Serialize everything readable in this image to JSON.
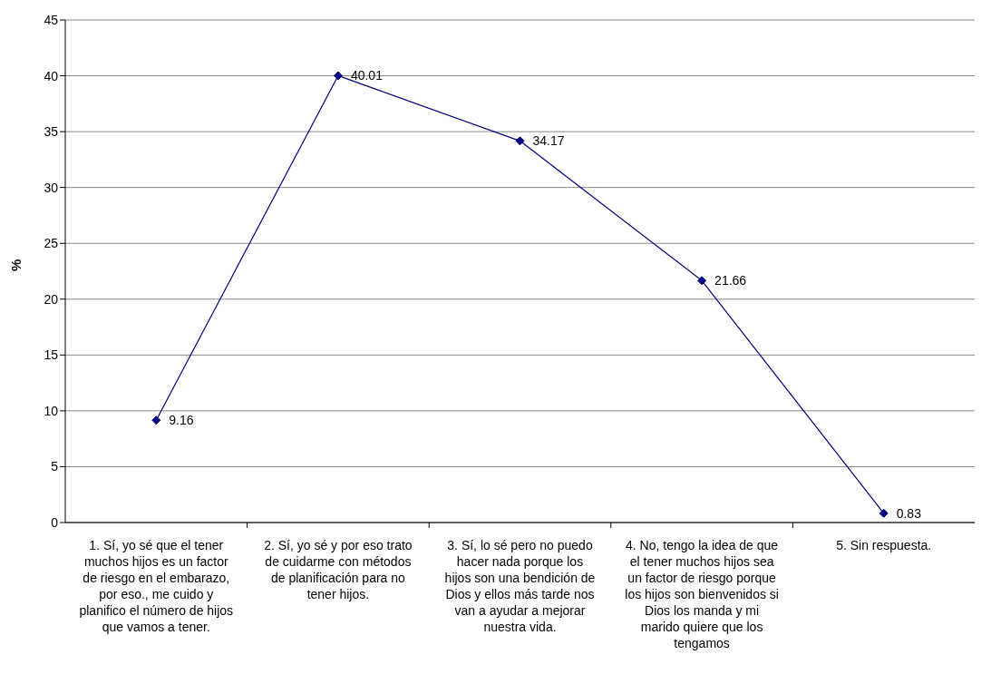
{
  "chart_data": {
    "type": "line",
    "ylabel": "%",
    "categories": [
      "1. Sí, yo sé que el tener muchos hijos es un factor de riesgo en el embarazo, por eso., me cuido y planifico el número de hijos que vamos a tener.",
      "2. Sí, yo sé y por eso trato de cuidarme con métodos de planificación para no tener hijos.",
      "3. Sí, lo sé pero no puedo hacer nada porque los hijos son una bendición de Dios y ellos más tarde nos van a ayudar a mejorar nuestra vida.",
      "4. No, tengo la idea de que el tener muchos hijos sea un factor de riesgo porque los hijos son bienvenidos si Dios los manda y mi marido quiere que los tengamos",
      "5. Sin respuesta."
    ],
    "series": [
      {
        "color": "#000080",
        "values": [
          9.16,
          40.01,
          34.17,
          21.66,
          0.83
        ]
      }
    ],
    "ylim": [
      0,
      45
    ],
    "yticks": [
      0,
      5,
      10,
      15,
      20,
      25,
      30,
      35,
      40,
      45
    ],
    "grid": "y",
    "marker": "diamond",
    "line_style": "solid",
    "data_labels": true
  }
}
